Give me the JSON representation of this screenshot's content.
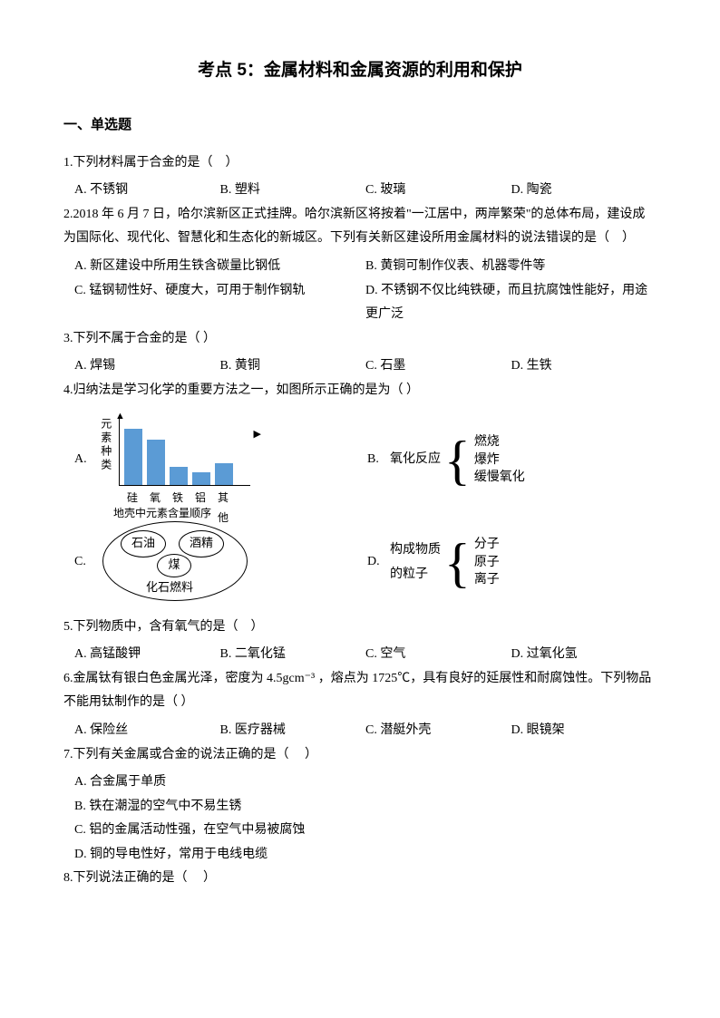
{
  "title": "考点 5：金属材料和金属资源的利用和保护",
  "section1": "一、单选题",
  "q1": {
    "text": "1.下列材料属于合金的是（　）",
    "a": "A. 不锈钢",
    "b": "B. 塑料",
    "c": "C. 玻璃",
    "d": "D. 陶瓷"
  },
  "q2": {
    "text": "2.2018 年 6 月 7 日，哈尔滨新区正式挂牌。哈尔滨新区将按着\"一江居中，两岸繁荣\"的总体布局，建设成为国际化、现代化、智慧化和生态化的新城区。下列有关新区建设所用金属材料的说法错误的是（　）",
    "a": "A. 新区建设中所用生铁含碳量比钢低",
    "b": "B. 黄铜可制作仪表、机器零件等",
    "c": "C. 锰钢韧性好、硬度大，可用于制作钢轨",
    "d": "D. 不锈钢不仅比纯铁硬，而且抗腐蚀性能好，用途更广泛"
  },
  "q3": {
    "text": "3.下列不属于合金的是（  ）",
    "a": "A. 焊锡",
    "b": "B. 黄铜",
    "c": "C. 石墨",
    "d": "D. 生铁"
  },
  "q4": {
    "text": "4.归纳法是学习化学的重要方法之一，如图所示正确的是为（ ）",
    "a_label": "A.",
    "b_label": "B.",
    "c_label": "C.",
    "d_label": "D.",
    "chart": {
      "y_label": "元素种类",
      "labels": [
        "硅",
        "氧",
        "铁",
        "铝",
        "其他"
      ],
      "heights": [
        62,
        50,
        20,
        14,
        24
      ],
      "caption": "地壳中元素含量顺序",
      "bar_color": "#5b9bd5"
    },
    "b_lead": "氧化反应",
    "b_items": [
      "燃烧",
      "爆炸",
      "缓慢氧化"
    ],
    "c_items": [
      "石油",
      "酒精",
      "煤"
    ],
    "c_label_text": "化石燃料",
    "d_lead1": "构成物质",
    "d_lead2": "的粒子",
    "d_items": [
      "分子",
      "原子",
      "离子"
    ]
  },
  "q5": {
    "text": "5.下列物质中，含有氧气的是（　）",
    "a": "A. 高锰酸钾",
    "b": "B. 二氧化锰",
    "c": "C. 空气",
    "d": "D. 过氧化氢"
  },
  "q6": {
    "text": "6.金属钛有银白色金属光泽，密度为 4.5gcm⁻³  ，熔点为 1725℃，具有良好的延展性和耐腐蚀性。下列物品不能用钛制作的是（   ）",
    "a": "A. 保险丝",
    "b": "B. 医疗器械",
    "c": "C. 潜艇外壳",
    "d": "D. 眼镜架"
  },
  "q7": {
    "text": "7.下列有关金属或合金的说法正确的是（　 ）",
    "a": "A. 合金属于单质",
    "b": "B. 铁在潮湿的空气中不易生锈",
    "c": "C. 铝的金属活动性强，在空气中易被腐蚀",
    "d": "D. 铜的导电性好，常用于电线电缆"
  },
  "q8": {
    "text": "8.下列说法正确的是（　 ）"
  }
}
